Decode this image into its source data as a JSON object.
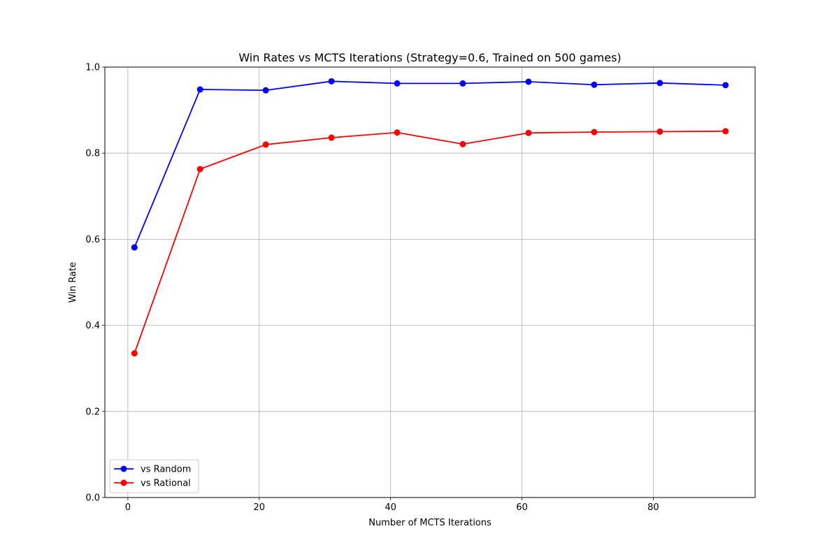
{
  "chart_data": {
    "type": "line",
    "title": "Win Rates vs MCTS Iterations (Strategy=0.6, Trained on 500 games)",
    "xlabel": "Number of MCTS Iterations",
    "ylabel": "Win Rate",
    "x": [
      1,
      11,
      21,
      31,
      41,
      51,
      61,
      71,
      81,
      91
    ],
    "xlim": [
      -3.5,
      95.5
    ],
    "ylim": [
      0,
      1
    ],
    "xticks": [
      0,
      20,
      40,
      60,
      80
    ],
    "xtick_labels": [
      "0",
      "20",
      "40",
      "60",
      "80"
    ],
    "yticks": [
      0,
      0.2,
      0.4,
      0.6,
      0.8,
      1.0
    ],
    "ytick_labels": [
      "0.0",
      "0.2",
      "0.4",
      "0.6",
      "0.8",
      "1.0"
    ],
    "grid": true,
    "legend_position": "lower-left",
    "series": [
      {
        "name": "vs Random",
        "color": "#0000ff",
        "marker": "circle",
        "values": [
          0.581,
          0.948,
          0.946,
          0.967,
          0.962,
          0.962,
          0.966,
          0.959,
          0.963,
          0.958
        ]
      },
      {
        "name": "vs Rational",
        "color": "#ff0000",
        "marker": "circle",
        "values": [
          0.335,
          0.763,
          0.82,
          0.836,
          0.848,
          0.821,
          0.847,
          0.849,
          0.85,
          0.851
        ]
      }
    ]
  }
}
